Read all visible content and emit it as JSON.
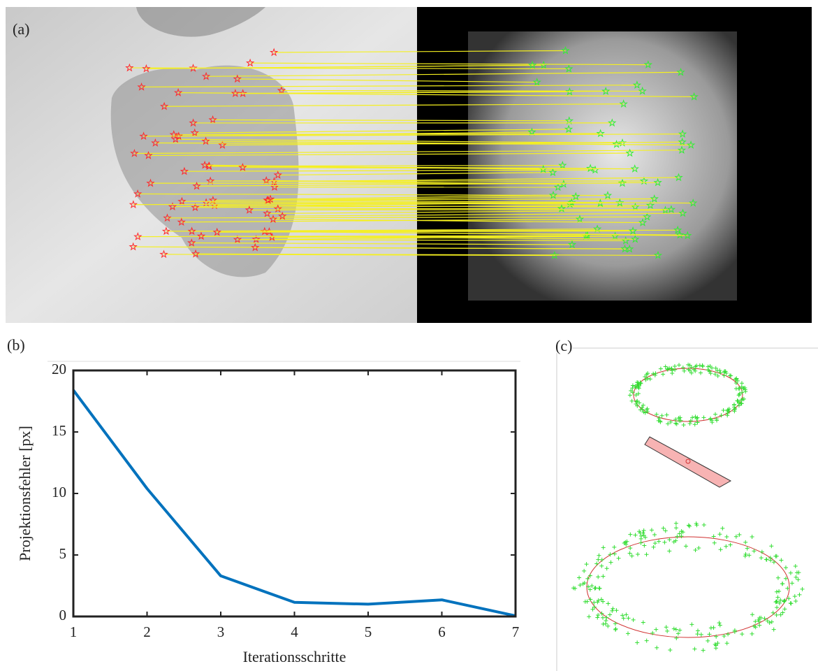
{
  "panels": {
    "a": {
      "label": "(a)"
    },
    "b": {
      "label": "(b)"
    },
    "c": {
      "label": "(c)"
    }
  },
  "chart_data": {
    "type": "line",
    "x": [
      1,
      2,
      3,
      4,
      5,
      6,
      7
    ],
    "series": [
      {
        "color": "#0072bd",
        "values": [
          18.4,
          10.4,
          3.3,
          1.15,
          1.0,
          1.35,
          0.05
        ]
      }
    ],
    "xlim": [
      1,
      7
    ],
    "xticks": [
      1,
      2,
      3,
      4,
      5,
      6,
      7
    ],
    "ylim": [
      0,
      20
    ],
    "yticks": [
      0,
      5,
      10,
      15,
      20
    ],
    "xlabel": "Iterationsschritte",
    "ylabel": "Projektionsfehler [px]",
    "grid": false
  }
}
